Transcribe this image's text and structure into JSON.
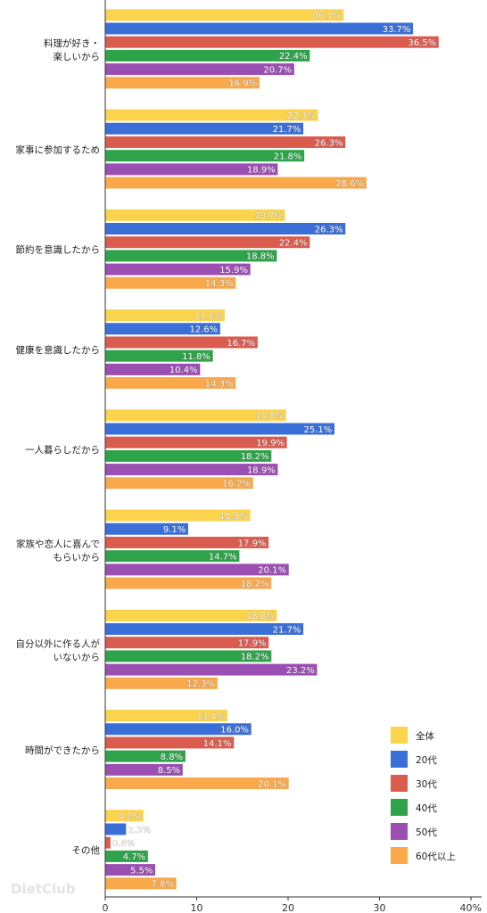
{
  "chart_data": {
    "type": "bar",
    "orientation": "horizontal",
    "categories": [
      "料理が好き・\n楽しいから",
      "家事に参加するため",
      "節約を意識したから",
      "健康を意識したから",
      "一人暮らしだから",
      "家族や恋人に喜んで\nもらいから",
      "自分以外に作る人が\nいないから",
      "時間ができたから",
      "その他"
    ],
    "series": [
      {
        "name": "全体",
        "color": "#fcd34d",
        "values": [
          26.1,
          23.3,
          19.7,
          13.1,
          19.8,
          15.9,
          18.8,
          13.4,
          4.2
        ]
      },
      {
        "name": "20代",
        "color": "#3b6fd8",
        "values": [
          33.7,
          21.7,
          26.3,
          12.6,
          25.1,
          9.1,
          21.7,
          16.0,
          2.3
        ]
      },
      {
        "name": "30代",
        "color": "#d95c4f",
        "values": [
          36.5,
          26.3,
          22.4,
          16.7,
          19.9,
          17.9,
          17.9,
          14.1,
          0.6
        ]
      },
      {
        "name": "40代",
        "color": "#2ea34a",
        "values": [
          22.4,
          21.8,
          18.8,
          11.8,
          18.2,
          14.7,
          18.2,
          8.8,
          4.7
        ]
      },
      {
        "name": "50代",
        "color": "#9b4fb3",
        "values": [
          20.7,
          18.9,
          15.9,
          10.4,
          18.9,
          20.1,
          23.2,
          8.5,
          5.5
        ]
      },
      {
        "name": "60代以上",
        "color": "#f9a84a",
        "values": [
          16.9,
          28.6,
          14.3,
          14.3,
          16.2,
          18.2,
          12.3,
          20.1,
          7.8
        ]
      }
    ],
    "value_suffix": "%",
    "xlim": [
      0,
      40
    ],
    "xticks": [
      "0",
      "10",
      "20",
      "30",
      "40%"
    ],
    "legend_position": "bottom-right",
    "grid": false,
    "watermark": "DietClub"
  }
}
